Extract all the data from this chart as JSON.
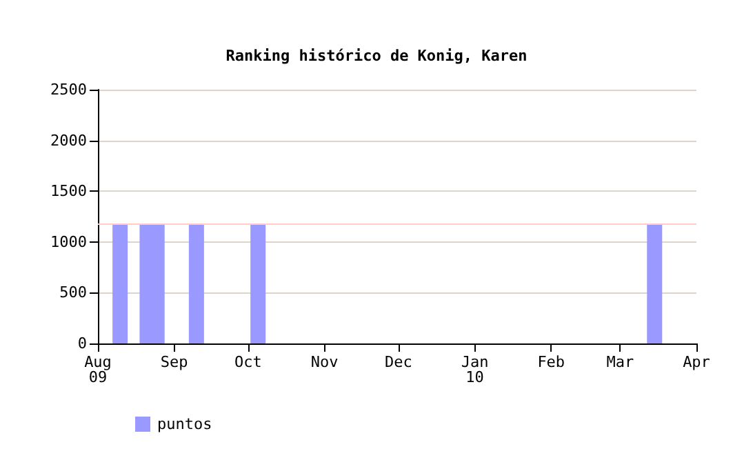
{
  "chart_data": {
    "type": "bar",
    "title": "Ranking histórico de Konig, Karen",
    "x": [
      "2009-08-10",
      "2009-08-21",
      "2009-08-25",
      "2009-09-10",
      "2009-10-05",
      "2010-03-15"
    ],
    "series": [
      {
        "name": "puntos",
        "color": "#9999ff",
        "values": [
          1175,
          1175,
          1175,
          1175,
          1175,
          1175
        ]
      }
    ],
    "xlim": [
      "2009-08-01",
      "2010-04-01"
    ],
    "xticks": [
      {
        "value": "2009-08-01",
        "label": "Aug\n09"
      },
      {
        "value": "2009-09-01",
        "label": "Sep"
      },
      {
        "value": "2009-10-01",
        "label": "Oct"
      },
      {
        "value": "2009-11-01",
        "label": "Nov"
      },
      {
        "value": "2009-12-01",
        "label": "Dec"
      },
      {
        "value": "2010-01-01",
        "label": "Jan\n10"
      },
      {
        "value": "2010-02-01",
        "label": "Feb"
      },
      {
        "value": "2010-03-01",
        "label": "Mar"
      },
      {
        "value": "2010-04-01",
        "label": "Apr"
      }
    ],
    "ylim": [
      0,
      2500
    ],
    "yticks": [
      0,
      500,
      1000,
      1500,
      2000,
      2500
    ],
    "ref_lines": [
      {
        "axis": "y",
        "value": 1175,
        "label": null,
        "color": "#ffcccc"
      }
    ],
    "grid": "y",
    "legend": "bottom left"
  }
}
